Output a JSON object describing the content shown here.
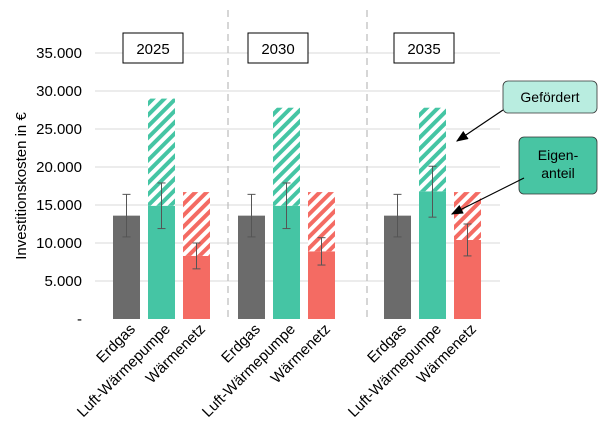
{
  "chart_data": {
    "type": "bar",
    "ylabel": "Investitionskosten in €",
    "ylim": [
      0,
      35000
    ],
    "yticks": [
      {
        "value": 0,
        "label": "-"
      },
      {
        "value": 5000,
        "label": "5.000"
      },
      {
        "value": 10000,
        "label": "10.000"
      },
      {
        "value": 15000,
        "label": "15.000"
      },
      {
        "value": 20000,
        "label": "20.000"
      },
      {
        "value": 25000,
        "label": "25.000"
      },
      {
        "value": 30000,
        "label": "30.000"
      },
      {
        "value": 35000,
        "label": "35.000"
      }
    ],
    "grid": true,
    "groups": [
      {
        "year": "2025",
        "bars": [
          {
            "category": "Erdgas",
            "eigenanteil": 13600,
            "gefoerdert": 0,
            "err_low": 10800,
            "err_high": 16400
          },
          {
            "category": "Luft-Wärmepumpe",
            "eigenanteil": 14900,
            "gefoerdert": 14100,
            "err_low": 11900,
            "err_high": 17900
          },
          {
            "category": "Wärmenetz",
            "eigenanteil": 8300,
            "gefoerdert": 8400,
            "err_low": 6600,
            "err_high": 10000
          }
        ]
      },
      {
        "year": "2030",
        "bars": [
          {
            "category": "Erdgas",
            "eigenanteil": 13600,
            "gefoerdert": 0,
            "err_low": 10800,
            "err_high": 16400
          },
          {
            "category": "Luft-Wärmepumpe",
            "eigenanteil": 14900,
            "gefoerdert": 12900,
            "err_low": 11900,
            "err_high": 17900
          },
          {
            "category": "Wärmenetz",
            "eigenanteil": 8900,
            "gefoerdert": 7800,
            "err_low": 7100,
            "err_high": 10700
          }
        ]
      },
      {
        "year": "2035",
        "bars": [
          {
            "category": "Erdgas",
            "eigenanteil": 13600,
            "gefoerdert": 0,
            "err_low": 10800,
            "err_high": 16400
          },
          {
            "category": "Luft-Wärmepumpe",
            "eigenanteil": 16800,
            "gefoerdert": 11000,
            "err_low": 13400,
            "err_high": 20100
          },
          {
            "category": "Wärmenetz",
            "eigenanteil": 10400,
            "gefoerdert": 6300,
            "err_low": 8300,
            "err_high": 12500
          }
        ]
      }
    ],
    "annotations": [
      {
        "label": "Gefördert",
        "color": "#b9ede0"
      },
      {
        "label": "Eigen-\nanteil",
        "color": "#48c5a3"
      }
    ]
  },
  "colors": {
    "Erdgas": "#6b6b6b",
    "Luft-Wärmepumpe": "#45c5a4",
    "Wärmenetz": "#f46b63",
    "gridline": "#d9d9d9",
    "separator": "#bfbfbf"
  }
}
